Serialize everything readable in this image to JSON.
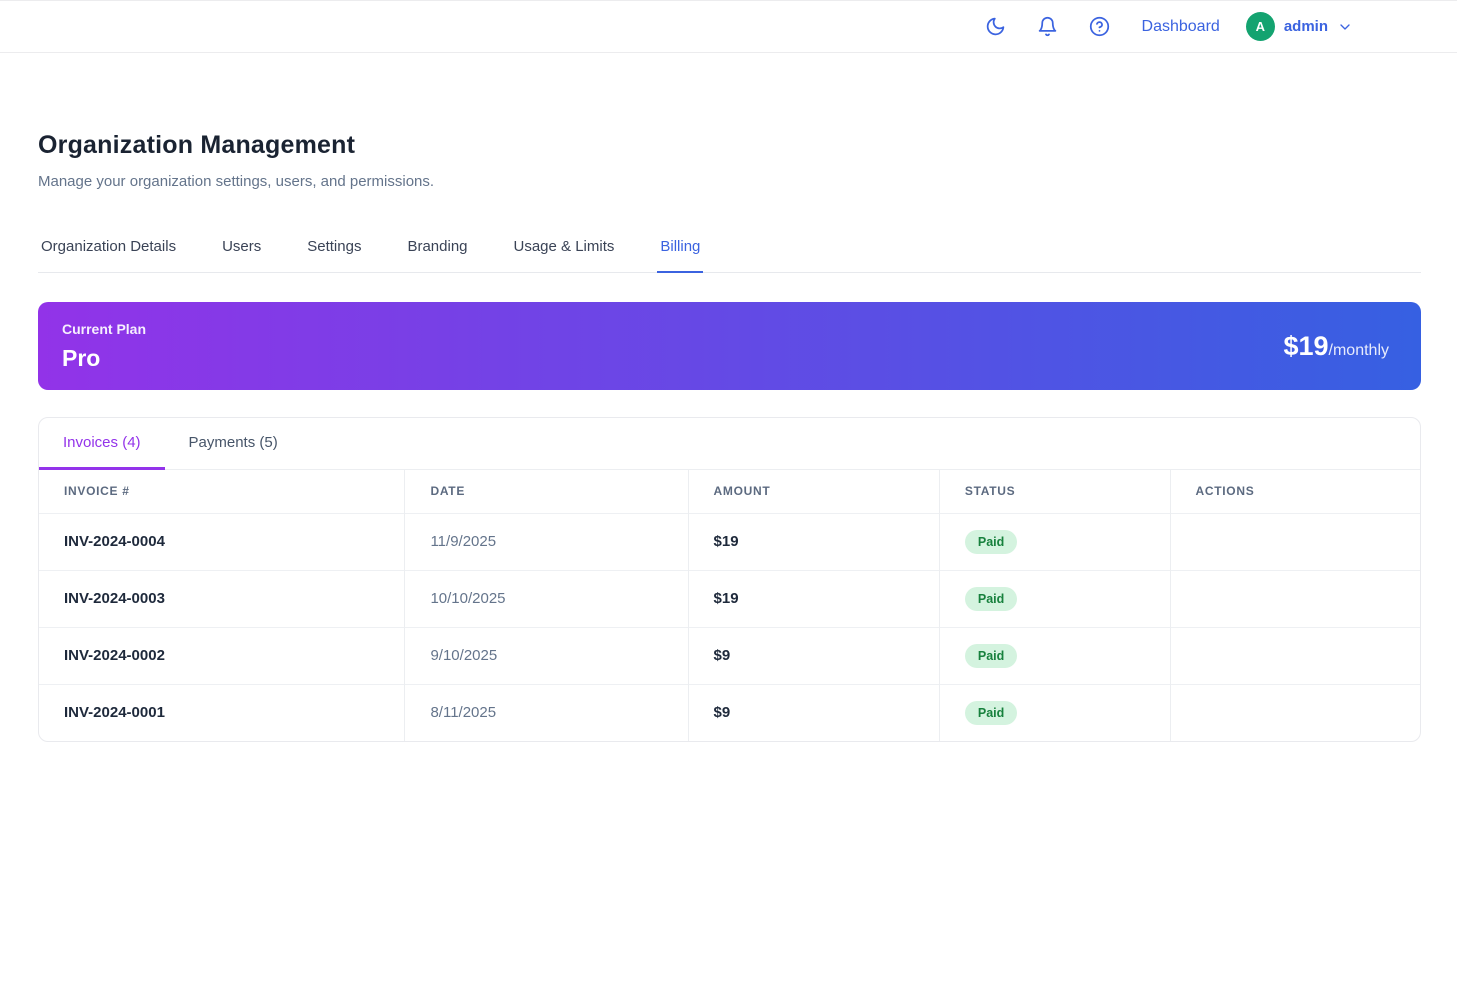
{
  "header": {
    "icons": {
      "dark_mode": "dark-mode-moon",
      "notifications": "notification-bell",
      "help": "help-circle"
    },
    "dashboard_label": "Dashboard",
    "user": {
      "initial": "A",
      "name": "admin"
    }
  },
  "page": {
    "title": "Organization Management",
    "subtitle": "Manage your organization settings, users, and permissions."
  },
  "tabs": [
    {
      "label": "Organization Details",
      "active": false
    },
    {
      "label": "Users",
      "active": false
    },
    {
      "label": "Settings",
      "active": false
    },
    {
      "label": "Branding",
      "active": false
    },
    {
      "label": "Usage & Limits",
      "active": false
    },
    {
      "label": "Billing",
      "active": true
    }
  ],
  "plan_banner": {
    "label": "Current Plan",
    "plan_name": "Pro",
    "price": "$19",
    "period": "/monthly",
    "gradient_from": "#9233e8",
    "gradient_to": "#3660e2"
  },
  "billing": {
    "subtabs": [
      {
        "label": "Invoices (4)",
        "active": true
      },
      {
        "label": "Payments (5)",
        "active": false
      }
    ],
    "table": {
      "columns": [
        "Invoice #",
        "Date",
        "Amount",
        "Status",
        "Actions"
      ],
      "rows": [
        {
          "invoice": "INV-2024-0004",
          "date": "11/9/2025",
          "amount": "$19",
          "status": "Paid"
        },
        {
          "invoice": "INV-2024-0003",
          "date": "10/10/2025",
          "amount": "$19",
          "status": "Paid"
        },
        {
          "invoice": "INV-2024-0002",
          "date": "9/10/2025",
          "amount": "$9",
          "status": "Paid"
        },
        {
          "invoice": "INV-2024-0001",
          "date": "8/11/2025",
          "amount": "$9",
          "status": "Paid"
        }
      ]
    }
  },
  "colors": {
    "accent_blue": "#3b63e0",
    "accent_purple": "#9333ea",
    "avatar_green": "#14a370",
    "badge_bg": "#d4f3df",
    "badge_text": "#17813d"
  }
}
